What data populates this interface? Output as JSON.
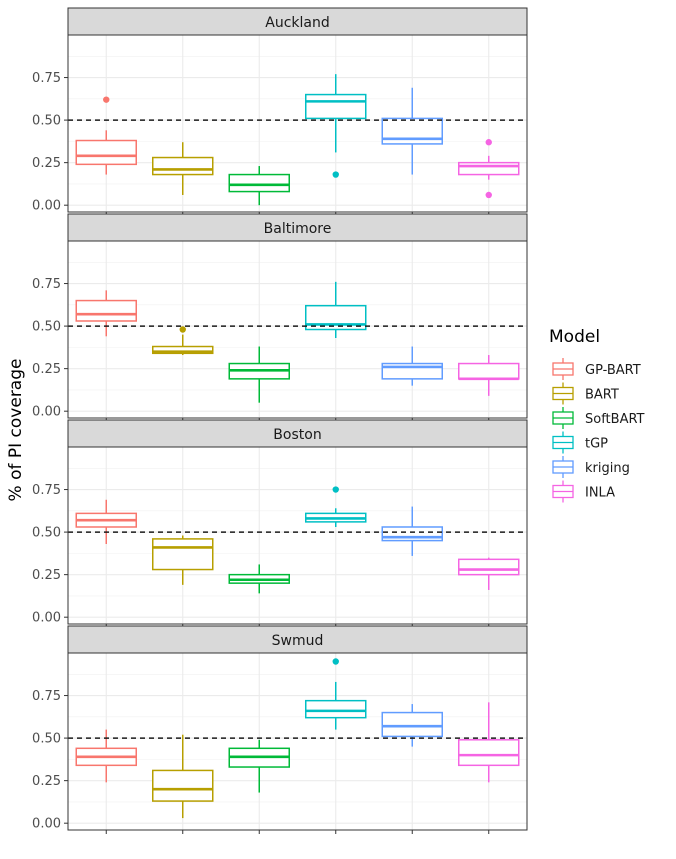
{
  "chart_data": {
    "type": "boxplot",
    "ylabel": "% of PI coverage",
    "xlabel": "",
    "ylim": [
      -0.04,
      1.0
    ],
    "yticks": [
      0.0,
      0.25,
      0.5,
      0.75
    ],
    "ytick_labels": [
      "0.00",
      "0.25",
      "0.50",
      "0.75"
    ],
    "reference_line": 0.5,
    "grid": true,
    "legend": {
      "title": "Model",
      "placement": "right",
      "entries": [
        "GP-BART",
        "BART",
        "SoftBART",
        "tGP",
        "kriging",
        "INLA"
      ]
    },
    "models": [
      "GP-BART",
      "BART",
      "SoftBART",
      "tGP",
      "kriging",
      "INLA"
    ],
    "colors": {
      "GP-BART": "#F8766D",
      "BART": "#B79F00",
      "SoftBART": "#00BA38",
      "tGP": "#00BFC4",
      "kriging": "#619CFF",
      "INLA": "#F564E3"
    },
    "panels": [
      {
        "title": "Auckland",
        "boxes": [
          {
            "model": "GP-BART",
            "min": 0.18,
            "q1": 0.24,
            "median": 0.29,
            "q3": 0.38,
            "max": 0.44,
            "outliers": [
              0.62
            ]
          },
          {
            "model": "BART",
            "min": 0.06,
            "q1": 0.18,
            "median": 0.21,
            "q3": 0.28,
            "max": 0.37,
            "outliers": []
          },
          {
            "model": "SoftBART",
            "min": 0.0,
            "q1": 0.08,
            "median": 0.12,
            "q3": 0.18,
            "max": 0.23,
            "outliers": []
          },
          {
            "model": "tGP",
            "min": 0.31,
            "q1": 0.51,
            "median": 0.61,
            "q3": 0.65,
            "max": 0.77,
            "outliers": [
              0.18
            ]
          },
          {
            "model": "kriging",
            "min": 0.18,
            "q1": 0.36,
            "median": 0.39,
            "q3": 0.51,
            "max": 0.69,
            "outliers": []
          },
          {
            "model": "INLA",
            "min": 0.15,
            "q1": 0.18,
            "median": 0.23,
            "q3": 0.25,
            "max": 0.29,
            "outliers": [
              0.37,
              0.06
            ]
          }
        ]
      },
      {
        "title": "Baltimore",
        "boxes": [
          {
            "model": "GP-BART",
            "min": 0.44,
            "q1": 0.53,
            "median": 0.57,
            "q3": 0.65,
            "max": 0.71,
            "outliers": []
          },
          {
            "model": "BART",
            "min": 0.33,
            "q1": 0.34,
            "median": 0.35,
            "q3": 0.38,
            "max": 0.45,
            "outliers": [
              0.48
            ]
          },
          {
            "model": "SoftBART",
            "min": 0.05,
            "q1": 0.19,
            "median": 0.24,
            "q3": 0.28,
            "max": 0.38,
            "outliers": []
          },
          {
            "model": "tGP",
            "min": 0.43,
            "q1": 0.48,
            "median": 0.51,
            "q3": 0.62,
            "max": 0.76,
            "outliers": []
          },
          {
            "model": "kriging",
            "min": 0.15,
            "q1": 0.19,
            "median": 0.26,
            "q3": 0.28,
            "max": 0.38,
            "outliers": []
          },
          {
            "model": "INLA",
            "min": 0.09,
            "q1": 0.19,
            "median": 0.19,
            "q3": 0.28,
            "max": 0.33,
            "outliers": []
          }
        ]
      },
      {
        "title": "Boston",
        "boxes": [
          {
            "model": "GP-BART",
            "min": 0.43,
            "q1": 0.53,
            "median": 0.57,
            "q3": 0.61,
            "max": 0.69,
            "outliers": []
          },
          {
            "model": "BART",
            "min": 0.19,
            "q1": 0.28,
            "median": 0.41,
            "q3": 0.46,
            "max": 0.48,
            "outliers": []
          },
          {
            "model": "SoftBART",
            "min": 0.14,
            "q1": 0.2,
            "median": 0.22,
            "q3": 0.25,
            "max": 0.31,
            "outliers": []
          },
          {
            "model": "tGP",
            "min": 0.53,
            "q1": 0.56,
            "median": 0.58,
            "q3": 0.61,
            "max": 0.64,
            "outliers": [
              0.75
            ]
          },
          {
            "model": "kriging",
            "min": 0.36,
            "q1": 0.45,
            "median": 0.47,
            "q3": 0.53,
            "max": 0.65,
            "outliers": []
          },
          {
            "model": "INLA",
            "min": 0.16,
            "q1": 0.25,
            "median": 0.28,
            "q3": 0.34,
            "max": 0.35,
            "outliers": []
          }
        ]
      },
      {
        "title": "Swmud",
        "boxes": [
          {
            "model": "GP-BART",
            "min": 0.24,
            "q1": 0.34,
            "median": 0.39,
            "q3": 0.44,
            "max": 0.55,
            "outliers": []
          },
          {
            "model": "BART",
            "min": 0.03,
            "q1": 0.13,
            "median": 0.2,
            "q3": 0.31,
            "max": 0.52,
            "outliers": []
          },
          {
            "model": "SoftBART",
            "min": 0.18,
            "q1": 0.33,
            "median": 0.39,
            "q3": 0.44,
            "max": 0.49,
            "outliers": []
          },
          {
            "model": "tGP",
            "min": 0.55,
            "q1": 0.62,
            "median": 0.66,
            "q3": 0.72,
            "max": 0.83,
            "outliers": [
              0.95
            ]
          },
          {
            "model": "kriging",
            "min": 0.45,
            "q1": 0.51,
            "median": 0.57,
            "q3": 0.65,
            "max": 0.7,
            "outliers": []
          },
          {
            "model": "INLA",
            "min": 0.24,
            "q1": 0.34,
            "median": 0.4,
            "q3": 0.49,
            "max": 0.71,
            "outliers": []
          }
        ]
      }
    ]
  }
}
